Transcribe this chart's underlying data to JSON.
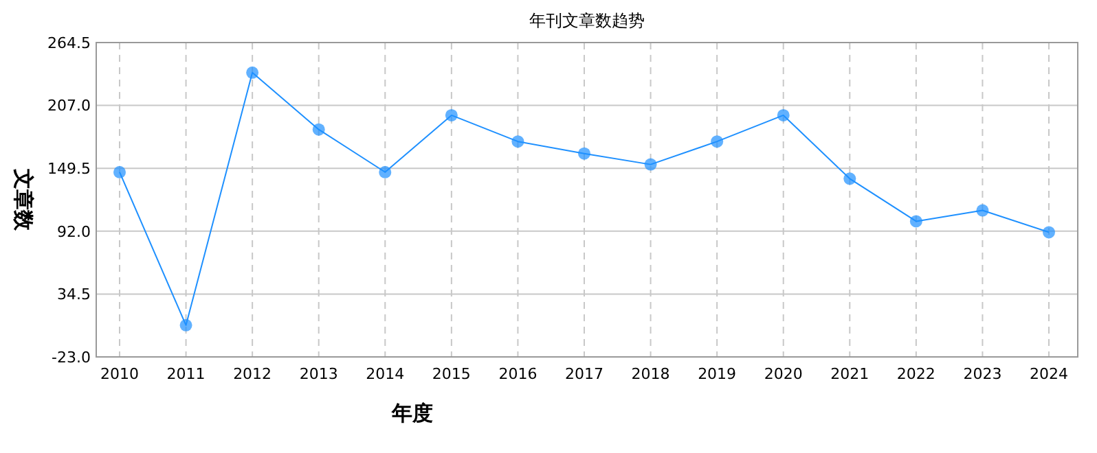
{
  "chart_data": {
    "type": "line",
    "title": "年刊文章数趋势",
    "xlabel": "年度",
    "ylabel": "文章数",
    "categories": [
      "2010",
      "2011",
      "2012",
      "2013",
      "2014",
      "2015",
      "2016",
      "2017",
      "2018",
      "2019",
      "2020",
      "2021",
      "2022",
      "2023",
      "2024"
    ],
    "series": [
      {
        "color": "#1e90ff",
        "values": [
          146,
          6,
          237,
          185,
          146,
          198,
          174,
          163,
          153,
          174,
          198,
          140,
          101,
          111,
          91
        ]
      }
    ],
    "ylim": [
      -23,
      264.5
    ],
    "yticks": [
      {
        "value": -23,
        "label": "-23.0"
      },
      {
        "value": 34.5,
        "label": "34.5"
      },
      {
        "value": 92,
        "label": "92.0"
      },
      {
        "value": 149.5,
        "label": "149.5"
      },
      {
        "value": 207,
        "label": "207.0"
      },
      {
        "value": 264.5,
        "label": "264.5"
      }
    ],
    "grid": true,
    "marker": "circle",
    "line_style": "solid"
  }
}
